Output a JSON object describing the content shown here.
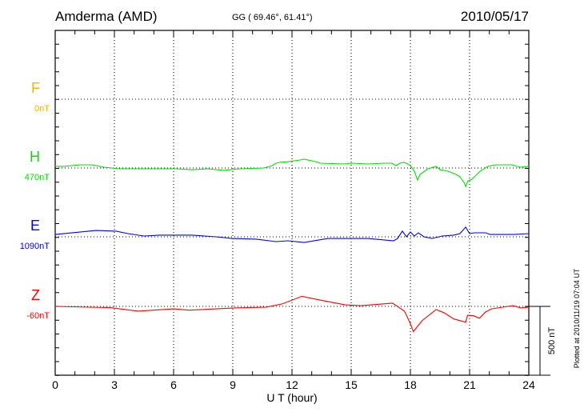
{
  "header": {
    "station": "Amderma (AMD)",
    "coordinates": "GG ( 69.46°,  61.41°)",
    "date": "2010/05/17"
  },
  "footer": {
    "plotted_at": "Plotted at 2010/11/19 07:04 UT",
    "scale_label": "500 nT"
  },
  "chart_data": {
    "type": "line",
    "xlabel": "U T (hour)",
    "xlim": [
      0,
      24
    ],
    "xticks": [
      "0",
      "3",
      "6",
      "9",
      "12",
      "15",
      "18",
      "21",
      "24"
    ],
    "scale_nT": 500,
    "grid": true,
    "series": [
      {
        "name": "F",
        "baseline": "0nT",
        "color": "#f5b400",
        "points": []
      },
      {
        "name": "H",
        "baseline": "470nT",
        "color": "#00e000",
        "points": [
          [
            0,
            12
          ],
          [
            0.45,
            12
          ],
          [
            1.26,
            23
          ],
          [
            1.86,
            23
          ],
          [
            2.47,
            6
          ],
          [
            3.28,
            -6
          ],
          [
            4.5,
            -6
          ],
          [
            5.31,
            -6
          ],
          [
            6.12,
            -6
          ],
          [
            6.93,
            -12
          ],
          [
            7.74,
            -6
          ],
          [
            8.55,
            -17
          ],
          [
            9.36,
            -6
          ],
          [
            10.58,
            0
          ],
          [
            10.99,
            17
          ],
          [
            11.19,
            35
          ],
          [
            11.39,
            41
          ],
          [
            11.8,
            46
          ],
          [
            12.41,
            58
          ],
          [
            12.61,
            64
          ],
          [
            13.22,
            46
          ],
          [
            13.42,
            35
          ],
          [
            14.64,
            29
          ],
          [
            15.04,
            35
          ],
          [
            15.85,
            29
          ],
          [
            16.66,
            35
          ],
          [
            17.07,
            35
          ],
          [
            17.27,
            17
          ],
          [
            17.47,
            35
          ],
          [
            17.68,
            41
          ],
          [
            17.88,
            29
          ],
          [
            18.0,
            17
          ],
          [
            18.2,
            -23
          ],
          [
            18.36,
            -87
          ],
          [
            18.49,
            -46
          ],
          [
            18.89,
            -6
          ],
          [
            19.3,
            12
          ],
          [
            19.5,
            -12
          ],
          [
            19.9,
            -23
          ],
          [
            20.31,
            -46
          ],
          [
            20.51,
            -64
          ],
          [
            20.72,
            -105
          ],
          [
            20.8,
            -134
          ],
          [
            20.92,
            -93
          ],
          [
            21.12,
            -81
          ],
          [
            21.53,
            -23
          ],
          [
            21.93,
            12
          ],
          [
            22.34,
            23
          ],
          [
            23.15,
            23
          ],
          [
            23.55,
            6
          ],
          [
            24,
            12
          ]
        ]
      },
      {
        "name": "E",
        "baseline": "1090nT",
        "color": "#0000ff",
        "points": [
          [
            0,
            17
          ],
          [
            2.07,
            46
          ],
          [
            3.08,
            41
          ],
          [
            3.69,
            23
          ],
          [
            4.5,
            6
          ],
          [
            5.31,
            12
          ],
          [
            6.93,
            12
          ],
          [
            8.15,
            0
          ],
          [
            8.96,
            -12
          ],
          [
            10.18,
            -17
          ],
          [
            11.19,
            -35
          ],
          [
            11.8,
            -29
          ],
          [
            12.61,
            -41
          ],
          [
            13.82,
            -12
          ],
          [
            14.64,
            -12
          ],
          [
            15.85,
            -12
          ],
          [
            17.15,
            -29
          ],
          [
            17.35,
            -12
          ],
          [
            17.59,
            41
          ],
          [
            17.8,
            0
          ],
          [
            18.0,
            35
          ],
          [
            18.2,
            6
          ],
          [
            18.4,
            29
          ],
          [
            18.69,
            0
          ],
          [
            19.09,
            -12
          ],
          [
            19.62,
            6
          ],
          [
            20.19,
            12
          ],
          [
            20.51,
            23
          ],
          [
            20.8,
            70
          ],
          [
            21.0,
            23
          ],
          [
            21.24,
            29
          ],
          [
            21.81,
            29
          ],
          [
            22.05,
            17
          ],
          [
            22.62,
            17
          ],
          [
            23.27,
            17
          ],
          [
            24,
            23
          ]
        ]
      },
      {
        "name": "Z",
        "baseline": "-60nT",
        "color": "#ff0000",
        "points": [
          [
            0,
            0
          ],
          [
            2.8,
            -9
          ],
          [
            4.2,
            -34
          ],
          [
            6.0,
            -18
          ],
          [
            6.8,
            -27
          ],
          [
            9.1,
            -11
          ],
          [
            10.7,
            -5
          ],
          [
            11.5,
            18
          ],
          [
            12.5,
            73
          ],
          [
            13.6,
            41
          ],
          [
            14.7,
            11
          ],
          [
            15.5,
            5
          ],
          [
            17.1,
            23
          ],
          [
            17.4,
            -5
          ],
          [
            17.7,
            -34
          ],
          [
            18.0,
            -125
          ],
          [
            18.15,
            -182
          ],
          [
            18.6,
            -102
          ],
          [
            19.3,
            -23
          ],
          [
            19.7,
            -45
          ],
          [
            20.2,
            -91
          ],
          [
            20.8,
            -114
          ],
          [
            20.9,
            -64
          ],
          [
            21.2,
            -68
          ],
          [
            21.5,
            -86
          ],
          [
            21.8,
            -41
          ],
          [
            22.1,
            -18
          ],
          [
            23.2,
            5
          ],
          [
            23.6,
            -11
          ],
          [
            24,
            -5
          ]
        ]
      }
    ]
  }
}
